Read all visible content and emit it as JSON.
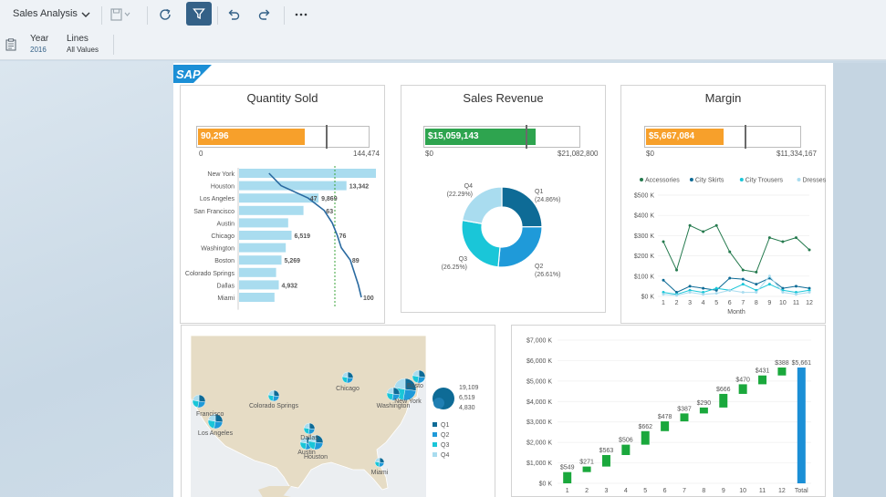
{
  "toolbar": {
    "app_title": "Sales Analysis",
    "icons": [
      "chevron-down-icon",
      "save-icon",
      "refresh-icon",
      "filter-icon",
      "undo-icon",
      "redo-icon",
      "more-icon"
    ]
  },
  "filters": [
    {
      "label": "Year",
      "value": "2016"
    },
    {
      "label": "Lines",
      "value": "All Values"
    }
  ],
  "logo": "SAP",
  "colors": {
    "orange": "#f7a02b",
    "green": "#2ea44f",
    "bar_light": "#a9dcef",
    "trend": "#2a6aa0",
    "q1": "#0e6b96",
    "q2": "#1f9ad9",
    "q3": "#1ac6d8",
    "q4": "#a9dcef",
    "waterfall_green": "#1aa83c",
    "waterfall_total": "#1b8fd6"
  },
  "quantity_panel": {
    "title": "Quantity Sold",
    "value_label": "90,296",
    "value": 90296,
    "max": 144474,
    "axis_min": "0",
    "axis_max": "144,474",
    "target_fraction": 0.75
  },
  "revenue_panel": {
    "title": "Sales Revenue",
    "value_label": "$15,059,143",
    "value": 15059143,
    "max": 21082800,
    "axis_min": "$0",
    "axis_max": "$21,082,800",
    "target_fraction": 0.65
  },
  "margin_panel": {
    "title": "Margin",
    "value_label": "$5,667,084",
    "value": 5667084,
    "max": 11334167,
    "axis_min": "$0",
    "axis_max": "$11,334,167",
    "target_fraction": 0.64
  },
  "map": {
    "cities": [
      "Chicago",
      "Colorado Springs",
      "Francisco",
      "Los Angeles",
      "Dallas",
      "Austin",
      "Houston",
      "Miami",
      "New York",
      "Washington",
      "Bosto"
    ],
    "size_legend": [
      "19,109",
      "6,519",
      "4,830"
    ],
    "color_legend": [
      "Q1",
      "Q2",
      "Q3",
      "Q4"
    ]
  },
  "chart_data": [
    {
      "type": "bar",
      "title": "Quantity Sold",
      "orientation": "horizontal",
      "categories": [
        "New York",
        "Houston",
        "Los Angeles",
        "San Francisco",
        "Austin",
        "Chicago",
        "Washington",
        "Boston",
        "Colorado Springs",
        "Dallas",
        "Miami"
      ],
      "values": [
        17000,
        13342,
        9869,
        8000,
        6100,
        6519,
        5800,
        5269,
        4600,
        4932,
        4400
      ],
      "data_labels": [
        "",
        "13,342",
        "9,869",
        "",
        "",
        "6,519",
        "",
        "5,269",
        "",
        "4,932",
        ""
      ],
      "cumulative_percent": [
        8,
        20,
        47,
        63,
        71,
        76,
        80,
        89,
        93,
        97,
        100
      ],
      "cumulative_labels": [
        "",
        "",
        "47",
        "63",
        "",
        "76",
        "",
        "89",
        "",
        "",
        "100"
      ]
    },
    {
      "type": "pie",
      "title": "Sales Revenue",
      "donut": true,
      "categories": [
        "Q1",
        "Q2",
        "Q3",
        "Q4"
      ],
      "values": [
        24.86,
        26.61,
        26.25,
        22.29
      ],
      "labels": [
        "(24.86%)",
        "(26.61%)",
        "(26.25%)",
        "(22.29%)"
      ]
    },
    {
      "type": "line",
      "title": "Margin",
      "xlabel": "Month",
      "x": [
        1,
        2,
        3,
        4,
        5,
        6,
        7,
        8,
        9,
        10,
        11,
        12
      ],
      "ylim": [
        0,
        500
      ],
      "y_ticks": [
        "$0 K",
        "$100 K",
        "$200 K",
        "$300 K",
        "$400 K",
        "$500 K"
      ],
      "legend": "top",
      "series": [
        {
          "name": "Accessories",
          "values": [
            270,
            130,
            350,
            320,
            350,
            220,
            130,
            120,
            290,
            270,
            290,
            230
          ]
        },
        {
          "name": "City Skirts",
          "values": [
            80,
            20,
            50,
            40,
            30,
            90,
            85,
            60,
            90,
            40,
            50,
            40
          ]
        },
        {
          "name": "City Trousers",
          "values": [
            20,
            10,
            30,
            20,
            40,
            30,
            60,
            30,
            60,
            30,
            20,
            30
          ]
        },
        {
          "name": "Dresses",
          "values": [
            10,
            5,
            20,
            10,
            15,
            30,
            20,
            20,
            100,
            20,
            10,
            20
          ]
        }
      ]
    },
    {
      "type": "bar",
      "subtype": "waterfall",
      "categories": [
        "1",
        "2",
        "3",
        "4",
        "5",
        "6",
        "7",
        "8",
        "9",
        "10",
        "11",
        "12",
        "Total"
      ],
      "values": [
        549,
        271,
        563,
        506,
        662,
        478,
        387,
        290,
        666,
        470,
        431,
        388,
        5661
      ],
      "data_labels": [
        "$549",
        "$271",
        "$563",
        "$506",
        "$662",
        "$478",
        "$387",
        "$290",
        "$666",
        "$470",
        "$431",
        "$388",
        "$5,661"
      ],
      "ylim": [
        0,
        7000
      ],
      "y_ticks": [
        "$0 K",
        "$1,000 K",
        "$2,000 K",
        "$3,000 K",
        "$4,000 K",
        "$5,000 K",
        "$6,000 K",
        "$7,000 K"
      ]
    }
  ]
}
